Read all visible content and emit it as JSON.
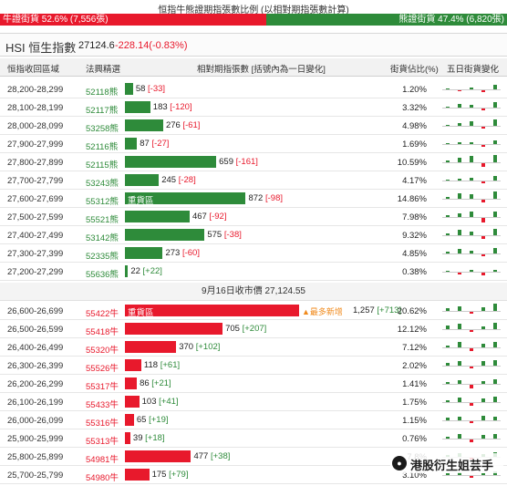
{
  "header": {
    "title": "恒指牛熊證期指張數比例 (以相對期指張數計算)",
    "bull_label": "牛證街貨 52.6% (7,556張)",
    "bear_label": "熊證街貨 47.4% (6,820張)",
    "bull_fraction": 0.526
  },
  "index": {
    "name": "HSI 恒生指數",
    "price": "27124.6",
    "change": "-228.14(-0.83%)"
  },
  "columns": {
    "range": "恒指收回區域",
    "code": "法興精選",
    "contracts": "相對期指張數 [括號內為一日變化]",
    "share": "街貨佔比(%)",
    "five_day": "五日街貨變化"
  },
  "divider": "9月16日收市價 27,124.55",
  "colors": {
    "bull": "#e8192c",
    "bear": "#2e8b3a",
    "new_tag": "#f08a1c"
  },
  "bear_rows": [
    {
      "range": "28,200-28,299",
      "code": "52118熊",
      "value": 58,
      "value_text": "58",
      "delta": "[-33]",
      "delta_sign": "neg",
      "pct": "1.20%",
      "heavy_text": "",
      "spark": [
        0.1,
        -0.15,
        0.3,
        -0.2,
        0.6
      ]
    },
    {
      "range": "28,100-28,199",
      "code": "52117熊",
      "value": 183,
      "value_text": "183",
      "delta": "[-120]",
      "delta_sign": "neg",
      "pct": "3.32%",
      "heavy_text": "",
      "spark": [
        0.15,
        0.5,
        0.4,
        -0.3,
        0.8
      ]
    },
    {
      "range": "28,000-28,099",
      "code": "53258熊",
      "value": 276,
      "value_text": "276",
      "delta": "[-61]",
      "delta_sign": "neg",
      "pct": "4.98%",
      "heavy_text": "",
      "spark": [
        0.1,
        0.35,
        0.6,
        -0.3,
        0.9
      ]
    },
    {
      "range": "27,900-27,999",
      "code": "52116熊",
      "value": 87,
      "value_text": "87",
      "delta": "[-27]",
      "delta_sign": "neg",
      "pct": "1.69%",
      "heavy_text": "",
      "spark": [
        0.1,
        0.2,
        0.3,
        -0.2,
        0.5
      ]
    },
    {
      "range": "27,800-27,899",
      "code": "52115熊",
      "value": 659,
      "value_text": "659",
      "delta": "[-161]",
      "delta_sign": "neg",
      "pct": "10.59%",
      "heavy_text": "",
      "spark": [
        0.2,
        0.6,
        0.9,
        -0.5,
        1.0
      ]
    },
    {
      "range": "27,700-27,799",
      "code": "53243熊",
      "value": 245,
      "value_text": "245",
      "delta": "[-28]",
      "delta_sign": "neg",
      "pct": "4.17%",
      "heavy_text": "",
      "spark": [
        0.1,
        0.3,
        0.4,
        -0.2,
        0.6
      ]
    },
    {
      "range": "27,600-27,699",
      "code": "55312熊",
      "value": 872,
      "value_text": "872",
      "delta": "[-98]",
      "delta_sign": "neg",
      "pct": "14.86%",
      "heavy_text": "重貨區",
      "spark": [
        0.3,
        0.8,
        0.6,
        -0.4,
        1.0
      ]
    },
    {
      "range": "27,500-27,599",
      "code": "55521熊",
      "value": 467,
      "value_text": "467",
      "delta": "[-92]",
      "delta_sign": "neg",
      "pct": "7.98%",
      "heavy_text": "",
      "spark": [
        0.2,
        0.5,
        0.8,
        -0.6,
        0.7
      ]
    },
    {
      "range": "27,400-27,499",
      "code": "53142熊",
      "value": 575,
      "value_text": "575",
      "delta": "[-38]",
      "delta_sign": "neg",
      "pct": "9.32%",
      "heavy_text": "",
      "spark": [
        0.3,
        0.7,
        0.5,
        -0.4,
        0.9
      ]
    },
    {
      "range": "27,300-27,399",
      "code": "52335熊",
      "value": 273,
      "value_text": "273",
      "delta": "[-60]",
      "delta_sign": "neg",
      "pct": "4.85%",
      "heavy_text": "",
      "spark": [
        0.2,
        0.6,
        0.4,
        -0.3,
        0.8
      ]
    },
    {
      "range": "27,200-27,299",
      "code": "55636熊",
      "value": 22,
      "value_text": "22",
      "delta": "[+22]",
      "delta_sign": "pos",
      "pct": "0.38%",
      "heavy_text": "",
      "spark": [
        0.1,
        -0.3,
        0.2,
        -0.4,
        0.3
      ]
    }
  ],
  "bull_rows": [
    {
      "range": "26,600-26,699",
      "code": "55422牛",
      "value": 1257,
      "value_text": "1,257",
      "delta": "[+713]",
      "delta_sign": "pos",
      "pct": "20.62%",
      "heavy_text": "重貨區",
      "new_tag": "▲最多新增",
      "spark": [
        0.4,
        0.6,
        -0.3,
        0.5,
        1.0
      ]
    },
    {
      "range": "26,500-26,599",
      "code": "55418牛",
      "value": 705,
      "value_text": "705",
      "delta": "[+207]",
      "delta_sign": "pos",
      "pct": "12.12%",
      "heavy_text": "",
      "new_tag": "",
      "spark": [
        0.5,
        0.8,
        -0.2,
        0.4,
        0.9
      ]
    },
    {
      "range": "26,400-26,499",
      "code": "55320牛",
      "value": 370,
      "value_text": "370",
      "delta": "[+102]",
      "delta_sign": "pos",
      "pct": "7.12%",
      "heavy_text": "",
      "new_tag": "",
      "spark": [
        0.3,
        0.7,
        -0.4,
        0.5,
        0.8
      ]
    },
    {
      "range": "26,300-26,399",
      "code": "55526牛",
      "value": 118,
      "value_text": "118",
      "delta": "[+61]",
      "delta_sign": "pos",
      "pct": "2.02%",
      "heavy_text": "",
      "new_tag": "",
      "spark": [
        0.4,
        0.6,
        -0.3,
        0.6,
        0.7
      ]
    },
    {
      "range": "26,200-26,299",
      "code": "55317牛",
      "value": 86,
      "value_text": "86",
      "delta": "[+21]",
      "delta_sign": "pos",
      "pct": "1.41%",
      "heavy_text": "",
      "new_tag": "",
      "spark": [
        0.3,
        0.5,
        -0.5,
        0.4,
        0.6
      ]
    },
    {
      "range": "26,100-26,199",
      "code": "55433牛",
      "value": 103,
      "value_text": "103",
      "delta": "[+41]",
      "delta_sign": "pos",
      "pct": "1.75%",
      "heavy_text": "",
      "new_tag": "",
      "spark": [
        0.3,
        0.6,
        -0.4,
        0.5,
        0.7
      ]
    },
    {
      "range": "26,000-26,099",
      "code": "55316牛",
      "value": 65,
      "value_text": "65",
      "delta": "[+19]",
      "delta_sign": "pos",
      "pct": "1.15%",
      "heavy_text": "",
      "new_tag": "",
      "spark": [
        0.4,
        0.5,
        -0.3,
        0.6,
        0.5
      ]
    },
    {
      "range": "25,900-25,999",
      "code": "55313牛",
      "value": 39,
      "value_text": "39",
      "delta": "[+18]",
      "delta_sign": "pos",
      "pct": "0.76%",
      "heavy_text": "",
      "new_tag": "",
      "spark": [
        0.3,
        0.6,
        -0.4,
        0.5,
        0.6
      ]
    },
    {
      "range": "25,800-25,899",
      "code": "54981牛",
      "value": 477,
      "value_text": "477",
      "delta": "[+38]",
      "delta_sign": "pos",
      "pct": "7.8%",
      "heavy_text": "",
      "new_tag": "",
      "spark": [
        0.2,
        0.5,
        -0.2,
        0.4,
        0.6
      ]
    },
    {
      "range": "25,700-25,799",
      "code": "54980牛",
      "value": 175,
      "value_text": "175",
      "delta": "[+79]",
      "delta_sign": "pos",
      "pct": "3.10%",
      "heavy_text": "",
      "new_tag": "",
      "spark": [
        0.2,
        0.4,
        -0.3,
        0.3,
        0.5
      ]
    }
  ],
  "watermark": {
    "text": "港股衍生姐芸手",
    "icon": "wechat-icon"
  }
}
